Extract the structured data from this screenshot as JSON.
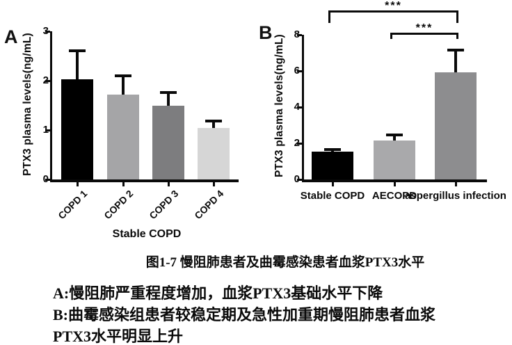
{
  "figure": {
    "caption": {
      "title": "图1-7 慢阻肺患者及曲霉感染患者血浆PTX3水平",
      "note_a": "A:慢阻肺严重程度增加，血浆PTX3基础水平下降",
      "note_b": "B:曲霉感染组患者较稳定期及急性加重期慢阻肺患者血浆",
      "note_b_cont": "PTX3水平明显上升"
    }
  },
  "chart_data": [
    {
      "type": "bar",
      "panel_label": "A",
      "ylabel": "PTX3 plasma levels(ng/mL)",
      "xlabel": "Stable COPD",
      "categories": [
        "COPD 1",
        "COPD 2",
        "COPD 3",
        "COPD 4"
      ],
      "values": [
        2.03,
        1.72,
        1.5,
        1.04
      ],
      "error_top": [
        2.6,
        2.1,
        1.76,
        1.18
      ],
      "bar_colors": [
        "#000000",
        "#a5a5a7",
        "#7d7d7f",
        "#d6d6d6"
      ],
      "ylim": [
        0,
        3
      ],
      "yticks": [
        0,
        1,
        2,
        3
      ],
      "significance": []
    },
    {
      "type": "bar",
      "panel_label": "B",
      "ylabel": "PTX3 plasma levels(ng/mL)",
      "xlabel": "",
      "categories": [
        "Stable COPD",
        "AECOPD",
        "aspergillus infection"
      ],
      "values": [
        1.52,
        2.15,
        5.92
      ],
      "error_top": [
        1.66,
        2.48,
        7.15
      ],
      "bar_colors": [
        "#000000",
        "#a9a9ab",
        "#8d8d8f"
      ],
      "ylim": [
        0,
        8
      ],
      "yticks": [
        0,
        2,
        4,
        6,
        8
      ],
      "significance": [
        {
          "groups": [
            "Stable COPD",
            "aspergillus infection"
          ],
          "label": "***"
        },
        {
          "groups": [
            "AECOPD",
            "aspergillus infection"
          ],
          "label": "***"
        }
      ]
    }
  ]
}
